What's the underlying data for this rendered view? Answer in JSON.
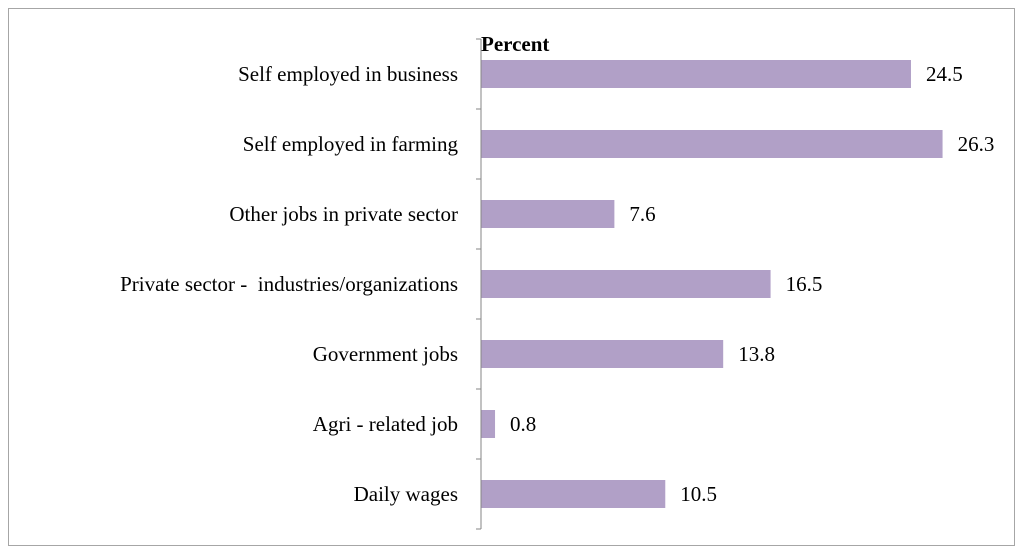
{
  "chart_data": {
    "type": "bar",
    "orientation": "horizontal",
    "title": "",
    "xlabel": "Percent",
    "ylabel": "",
    "categories": [
      "Self employed in business",
      "Self employed in farming",
      "Other jobs in private sector",
      "Private sector -  industries/organizations",
      "Government jobs",
      "Agri - related job",
      "Daily wages"
    ],
    "values": [
      24.5,
      26.3,
      7.6,
      16.5,
      13.8,
      0.8,
      10.5
    ],
    "value_labels": [
      "24.5",
      "26.3",
      "7.6",
      "16.5",
      "13.8",
      "0.8",
      "10.5"
    ],
    "xlim": [
      0,
      30
    ],
    "grid": false,
    "legend": "none",
    "bar_color": "#b1a0c7",
    "axis_color": "#868686"
  }
}
